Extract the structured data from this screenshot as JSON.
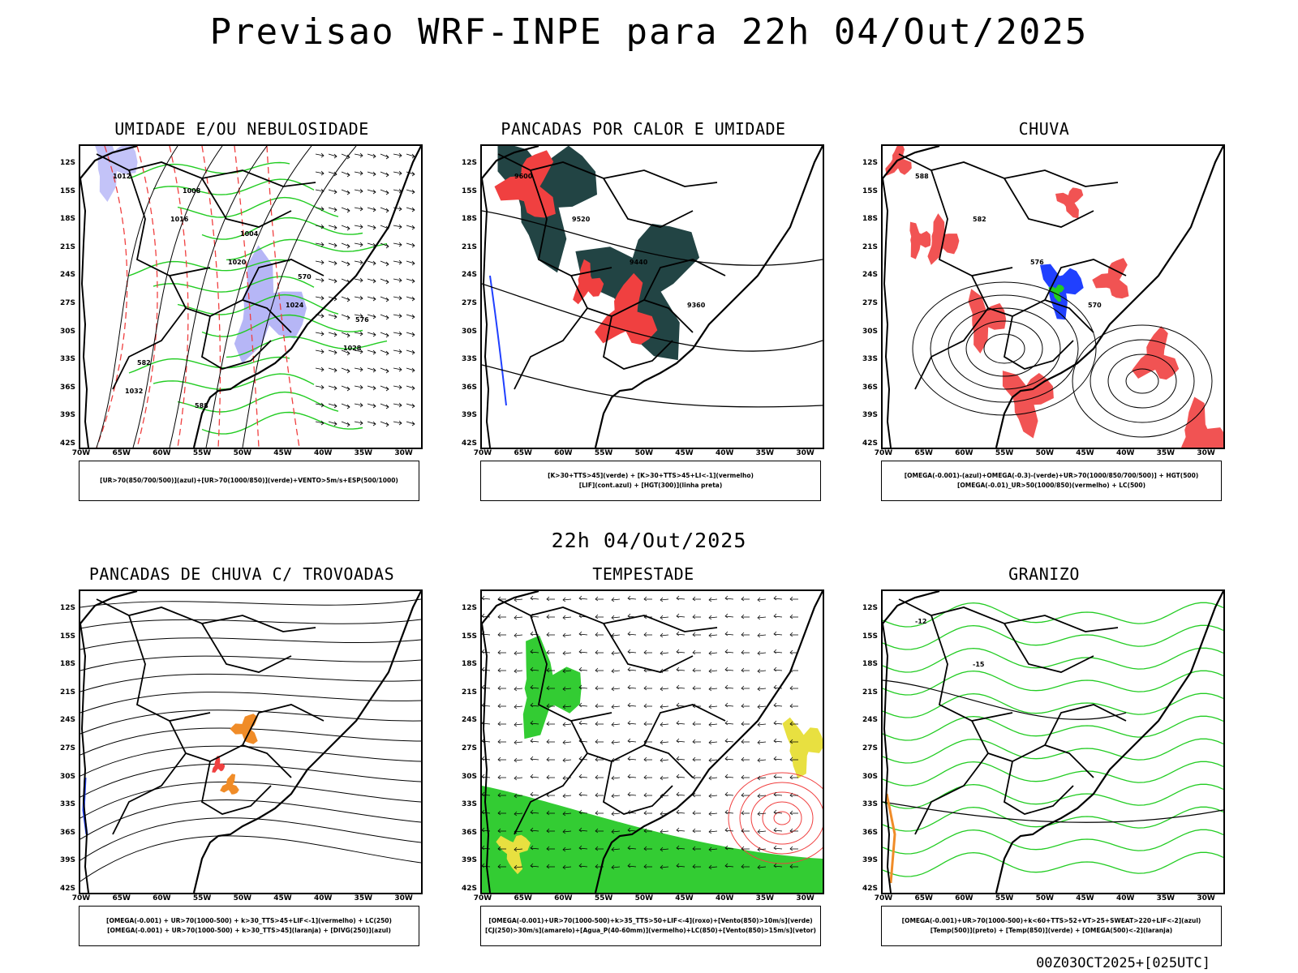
{
  "header": {
    "title": "Previsao WRF-INPE  para 22h 04/Out/2025",
    "subtitle": "22h 04/Out/2025",
    "footer": "00Z03OCT2025+[025UTC]"
  },
  "axes": {
    "lat_labels": [
      "12S",
      "15S",
      "18S",
      "21S",
      "24S",
      "27S",
      "30S",
      "33S",
      "36S",
      "39S",
      "42S"
    ],
    "lon_labels": [
      "70W",
      "65W",
      "60W",
      "55W",
      "50W",
      "45W",
      "40W",
      "35W",
      "30W"
    ]
  },
  "panels": [
    {
      "title": "UMIDADE E/OU NEBULOSIDADE",
      "legend": [
        "[UR>70(850/700/500)](azul)+[UR>70(1000/850)](verde)+VENTO>5m/s+ESP(500/1000)"
      ],
      "contours": [
        "1012",
        "1016",
        "1020",
        "1024",
        "1028",
        "1032",
        "1008",
        "1004",
        "570",
        "576",
        "582",
        "588"
      ]
    },
    {
      "title": "PANCADAS POR CALOR E UMIDADE",
      "legend": [
        "[K>30+TTS>45](verde) + [K>30+TTS>45+LI<-1](vermelho)",
        "[LIF](cont.azul) + [HGT(300)](linha preta)"
      ],
      "contours": [
        "9600",
        "9520",
        "9440",
        "9360"
      ]
    },
    {
      "title": "CHUVA",
      "legend": [
        "[OMEGA(-0.001)-(azul)+OMEGA(-0.3)-(verde)+UR>70(1000/850/700/500)] + HGT(500)",
        "[OMEGA(-0.01)_UR>50(1000/850)(vermelho) + LC(500)"
      ],
      "contours": [
        "588",
        "582",
        "576",
        "570"
      ]
    },
    {
      "title": "PANCADAS DE CHUVA C/ TROVOADAS",
      "legend": [
        "[OMEGA(-0.001) + UR>70(1000-500) + k>30_TTS>45+LIF<-1](vermelho) + LC(250)",
        "[OMEGA(-0.001) + UR>70(1000-500) + k>30_TTS>45](laranja) + [DIVG(250)](azul)"
      ],
      "contours": []
    },
    {
      "title": "TEMPESTADE",
      "legend": [
        "[OMEGA(-0.001)+UR>70(1000-500)+k>35_TTS>50+LIF<-4](roxo)+[Vento(850)>10m/s](verde)",
        "[CJ(250)>30m/s](amarelo)+[Agua_P(40-60mm)](vermelho)+LC(850)+[Vento(850)>15m/s](vetor)"
      ],
      "contours": []
    },
    {
      "title": "GRANIZO",
      "legend": [
        "[OMEGA(-0.001)+UR>70(1000-500)+k<60+TTS>52+VT>25+SWEAT>220+LIF<-2](azul)",
        "[Temp(500)](preto) + [Temp(850)](verde) + [OMEGA(500)<-2](laranja)"
      ],
      "contours": [
        "-12",
        "-15"
      ]
    }
  ],
  "colors": {
    "blue_shade": "#a9a9f5",
    "green_contour": "#22cc22",
    "red_shade": "#f04040",
    "dark_teal": "#224444",
    "orange": "#f08c28",
    "yellow": "#e8e040",
    "green_shade": "#33cc33",
    "blue_contour": "#2040ff"
  }
}
